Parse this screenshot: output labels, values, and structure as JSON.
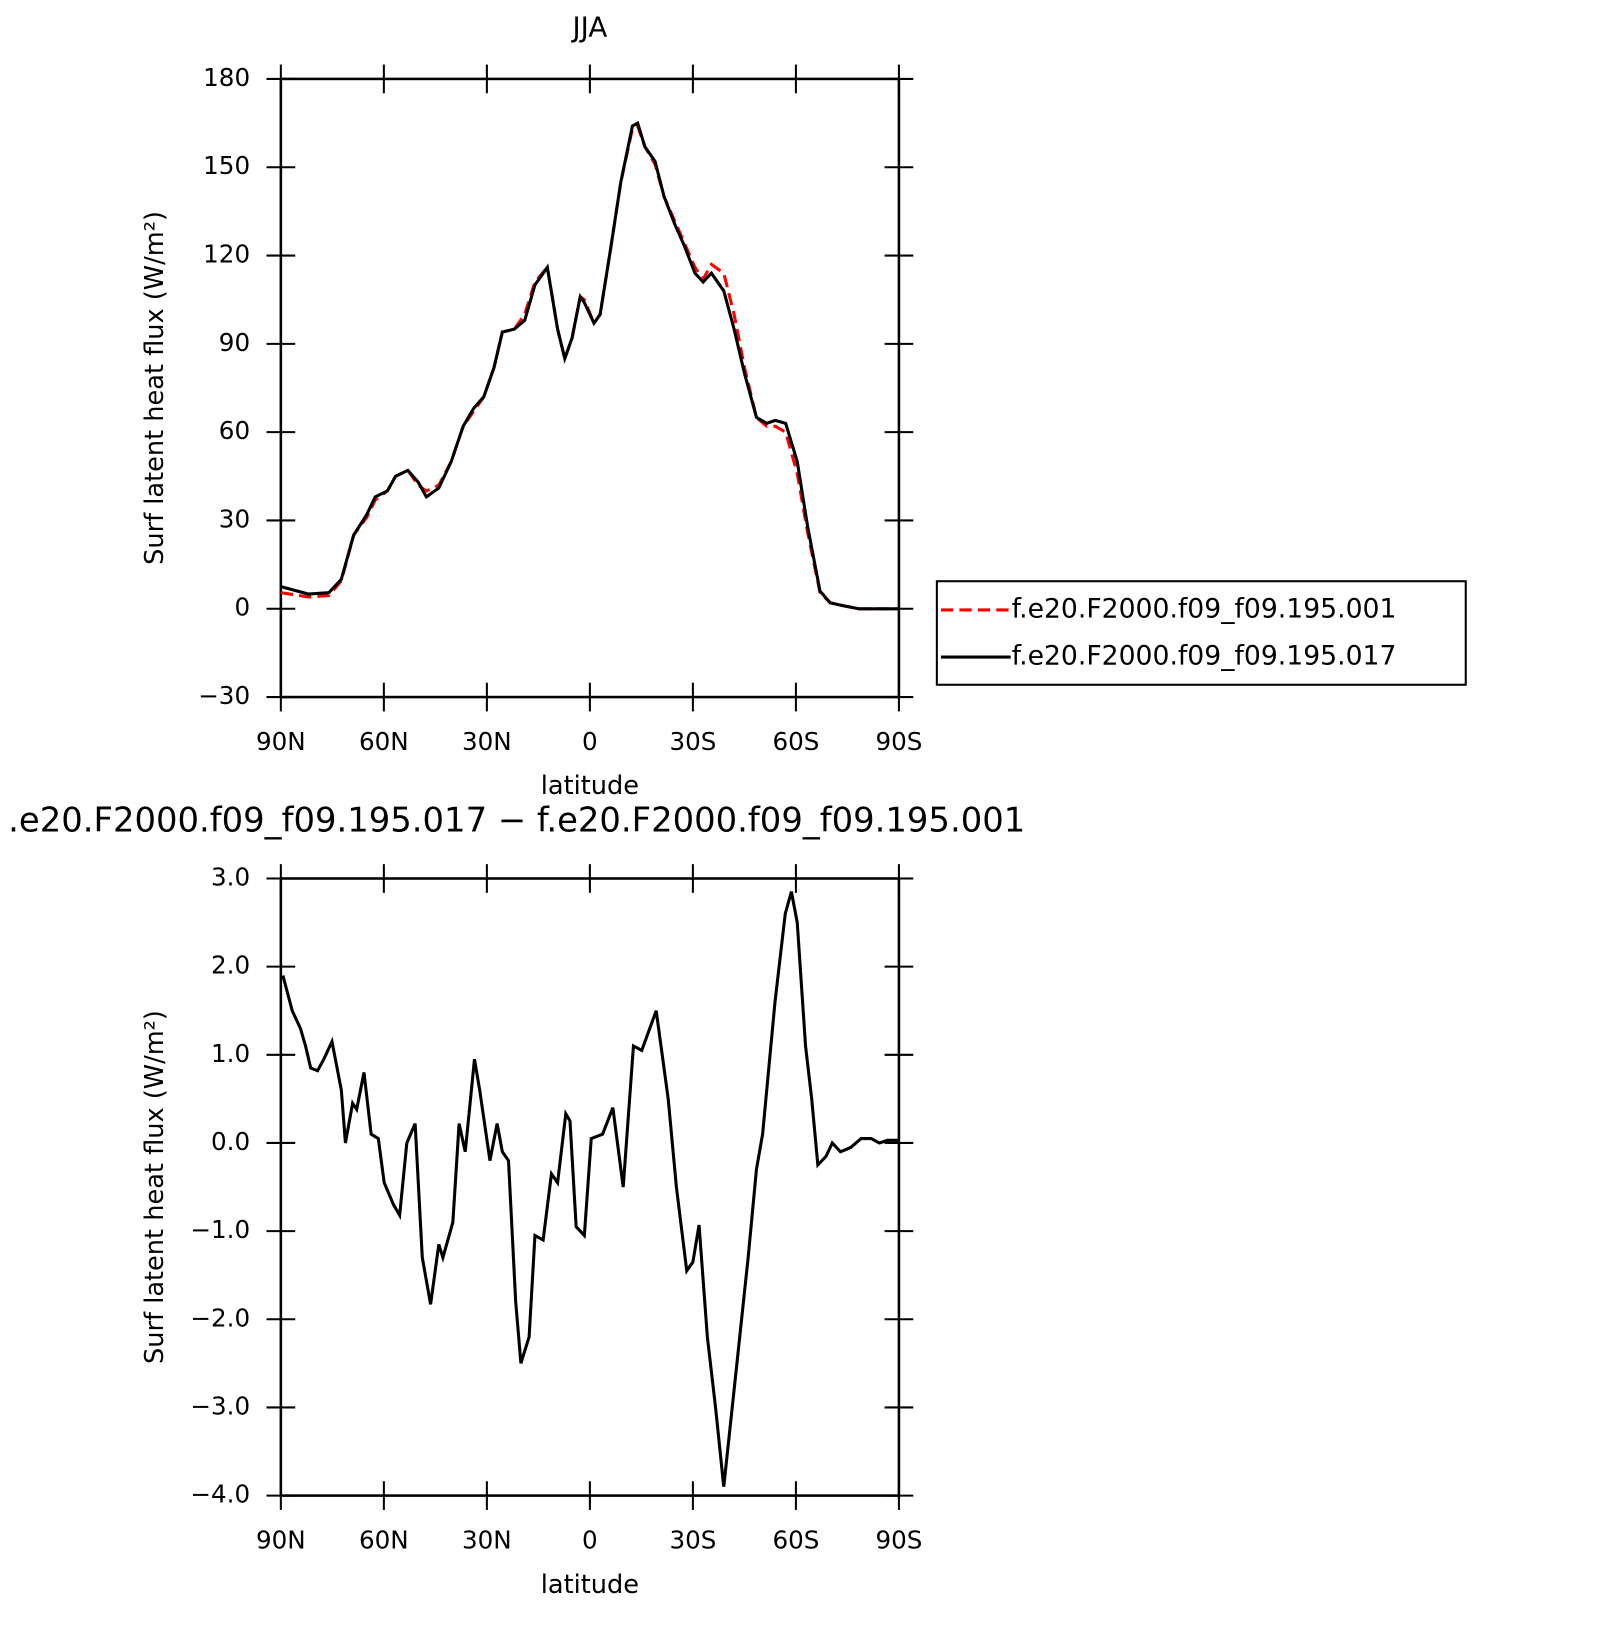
{
  "chart_data": [
    {
      "type": "line",
      "title": "JJA",
      "xlabel": "latitude",
      "ylabel": "Surf latent heat flux (W/m²)",
      "xlim": [
        90,
        -90
      ],
      "xticks": [
        {
          "value": 90,
          "label": "90N"
        },
        {
          "value": 60,
          "label": "60N"
        },
        {
          "value": 30,
          "label": "30N"
        },
        0,
        {
          "value": -30,
          "label": "30S"
        },
        {
          "value": -60,
          "label": "60S"
        },
        {
          "value": -90,
          "label": "90S"
        }
      ],
      "ylim": [
        -30,
        180
      ],
      "yticks": [
        {
          "value": -30,
          "label": "−30"
        },
        0,
        30,
        60,
        90,
        120,
        150,
        180
      ],
      "legend": "right",
      "x": [
        90,
        82,
        76,
        72.4,
        68.8,
        65,
        62.5,
        59,
        56.6,
        53,
        50,
        47.6,
        44,
        40.4,
        36.9,
        33.9,
        30.9,
        27.9,
        25.5,
        22,
        19,
        16,
        12.4,
        9.4,
        7.3,
        5.2,
        2.8,
        1.6,
        -1.2,
        -3,
        -6,
        -9,
        -12.4,
        -13.9,
        -16,
        -19,
        -21.6,
        -24.6,
        -27.6,
        -30.6,
        -33,
        -35.4,
        -39,
        -42,
        -45,
        -48.5,
        -51.5,
        -54,
        -57,
        -60.4,
        -63.4,
        -67,
        -70,
        -74,
        -78.4,
        -82.5,
        -90
      ],
      "series": [
        {
          "name": "f.e20.F2000.f09_f09.195.001",
          "color": "#ff0000",
          "style": "dashed",
          "values": [
            5.5,
            4,
            4.5,
            9.5,
            25,
            31,
            37,
            40,
            45,
            47,
            42,
            40,
            42,
            50,
            62,
            67,
            72,
            82,
            94,
            95,
            100,
            111,
            116,
            95,
            85,
            92,
            106,
            105,
            97,
            100,
            122,
            145,
            163,
            164,
            157,
            151,
            140,
            132,
            124,
            116,
            112,
            117,
            114,
            100,
            82,
            65,
            62,
            62,
            60,
            46,
            26,
            5.5,
            2,
            1,
            0,
            0,
            0
          ]
        },
        {
          "name": "f.e20.F2000.f09_f09.195.017",
          "color": "#000000",
          "style": "solid",
          "values": [
            7.5,
            5,
            5.5,
            10,
            25,
            32,
            38,
            40,
            45,
            47,
            43,
            38,
            41,
            50,
            62,
            68,
            72,
            82,
            94,
            95,
            98,
            110,
            116,
            95,
            85,
            92,
            106,
            104,
            97,
            100,
            122,
            145,
            164,
            165,
            157,
            152,
            140,
            131,
            123,
            114,
            111,
            114,
            108,
            95,
            80,
            65,
            63,
            64,
            63,
            50,
            28,
            6,
            2,
            1,
            0,
            0,
            0
          ]
        }
      ]
    },
    {
      "type": "line",
      "title": ".e20.F2000.f09_f09.195.017 − f.e20.F2000.f09_f09.195.001",
      "xlabel": "latitude",
      "ylabel": "Surf latent heat flux (W/m²)",
      "xlim": [
        90,
        -90
      ],
      "xticks": [
        {
          "value": 90,
          "label": "90N"
        },
        {
          "value": 60,
          "label": "60N"
        },
        {
          "value": 30,
          "label": "30N"
        },
        0,
        {
          "value": -30,
          "label": "30S"
        },
        {
          "value": -60,
          "label": "60S"
        },
        {
          "value": -90,
          "label": "90S"
        }
      ],
      "ylim": [
        -4,
        3
      ],
      "yticks": [
        {
          "value": -4,
          "label": "−4.0"
        },
        {
          "value": -3,
          "label": "−3.0"
        },
        {
          "value": -2,
          "label": "−2.0"
        },
        {
          "value": -1,
          "label": "−1.0"
        },
        {
          "value": 0,
          "label": "0.0"
        },
        {
          "value": 1,
          "label": "1.0"
        },
        {
          "value": 2,
          "label": "2.0"
        },
        {
          "value": 3,
          "label": "3.0"
        }
      ],
      "x": [
        89.4,
        86.7,
        84.3,
        82.8,
        81.3,
        79.3,
        77.5,
        75.1,
        72.4,
        71.2,
        69.1,
        67.9,
        65.8,
        63.7,
        61.6,
        59.9,
        57.2,
        55.4,
        53.3,
        50.9,
        48.8,
        46.4,
        44,
        42.8,
        39.9,
        38.1,
        36.3,
        33.6,
        32.1,
        29.1,
        27,
        25.5,
        23.7,
        21.6,
        20.1,
        17.7,
        16,
        13.6,
        11.2,
        9.4,
        7,
        5.8,
        4,
        1.6,
        -0.4,
        -3.7,
        -6.7,
        -9.7,
        -12.7,
        -15.1,
        -19.3,
        -22.8,
        -25.2,
        -28.2,
        -30,
        -31.8,
        -34.2,
        -36.6,
        -39,
        -42,
        -46.1,
        -48.5,
        -50.3,
        -53.9,
        -56.9,
        -58.7,
        -60.4,
        -62.8,
        -64.6,
        -66.4,
        -68.8,
        -70.6,
        -73,
        -76,
        -79,
        -81.9,
        -84.3,
        -86.7,
        -89.7
      ],
      "series": [
        {
          "color": "#000000",
          "style": "solid",
          "values": [
            1.9,
            1.5,
            1.3,
            1.1,
            0.85,
            0.82,
            0.95,
            1.15,
            0.6,
            0,
            0.45,
            0.38,
            0.8,
            0.1,
            0.05,
            -0.45,
            -0.7,
            -0.82,
            0,
            0.22,
            -1.3,
            -1.83,
            -1.15,
            -1.3,
            -0.9,
            0.22,
            -0.1,
            0.95,
            0.6,
            -0.2,
            0.22,
            -0.1,
            -0.2,
            -1.8,
            -2.5,
            -2.2,
            -1.05,
            -1.1,
            -0.35,
            -0.45,
            0.33,
            0.25,
            -0.95,
            -1.05,
            0.05,
            0.1,
            0.4,
            -0.5,
            1.1,
            1.05,
            1.5,
            0.5,
            -0.5,
            -1.45,
            -1.35,
            -0.93,
            -2.2,
            -3,
            -3.9,
            -2.8,
            -1.3,
            -0.3,
            0.1,
            1.6,
            2.6,
            2.85,
            2.5,
            1.1,
            0.5,
            -0.25,
            -0.15,
            0,
            -0.1,
            -0.05,
            0.05,
            0.05,
            0,
            0.03,
            0.03
          ]
        }
      ]
    }
  ]
}
